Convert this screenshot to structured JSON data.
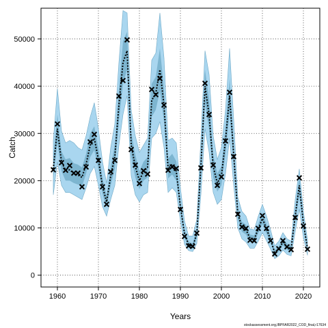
{
  "chart_data": {
    "type": "line",
    "xlabel": "Years",
    "ylabel": "Catch",
    "xlim": [
      1956,
      2024
    ],
    "ylim": [
      -2500,
      56500
    ],
    "xticks": [
      1960,
      1970,
      1980,
      1990,
      2000,
      2010,
      2020
    ],
    "yticks": [
      0,
      10000,
      20000,
      30000,
      40000,
      50000
    ],
    "grid": true,
    "legend": "none",
    "credit": "stockassessment.org,IBPFAR2022_COD_final,r17634",
    "colors": {
      "band_outer": "#a9d6ef",
      "band_inner": "#6fa9c6",
      "line": "#000000",
      "marker": "#000000",
      "grid": "#333333"
    },
    "years": [
      1959,
      1960,
      1961,
      1962,
      1963,
      1964,
      1965,
      1966,
      1967,
      1968,
      1969,
      1970,
      1971,
      1972,
      1973,
      1974,
      1975,
      1976,
      1977,
      1978,
      1979,
      1980,
      1981,
      1982,
      1983,
      1984,
      1985,
      1986,
      1987,
      1988,
      1989,
      1990,
      1991,
      1992,
      1993,
      1994,
      1995,
      1996,
      1997,
      1998,
      1999,
      2000,
      2001,
      2002,
      2003,
      2004,
      2005,
      2006,
      2007,
      2008,
      2009,
      2010,
      2011,
      2012,
      2013,
      2014,
      2015,
      2016,
      2017,
      2018,
      2019,
      2020,
      2021
    ],
    "estimate": [
      22500,
      31000,
      24000,
      22200,
      22300,
      21500,
      21200,
      20700,
      23500,
      27500,
      29000,
      24500,
      18800,
      15500,
      21000,
      25000,
      36000,
      45000,
      47500,
      27500,
      23000,
      20000,
      22000,
      22800,
      37000,
      38500,
      43500,
      36000,
      22500,
      23500,
      22000,
      14500,
      8800,
      6500,
      6000,
      8800,
      23000,
      40000,
      34000,
      23000,
      19500,
      21000,
      28500,
      38000,
      25500,
      13000,
      10200,
      9600,
      7800,
      7600,
      9800,
      12000,
      9800,
      7500,
      4800,
      5500,
      7000,
      6000,
      5600,
      12500,
      19000,
      11000,
      5600
    ],
    "low95": [
      17000,
      24000,
      19000,
      17500,
      17500,
      17000,
      16500,
      16000,
      18500,
      21500,
      23000,
      19000,
      14500,
      12500,
      16000,
      19000,
      27500,
      34000,
      38000,
      21000,
      17000,
      15500,
      17000,
      17500,
      29000,
      30000,
      32500,
      27000,
      17500,
      18500,
      17500,
      11500,
      6500,
      5200,
      5000,
      6700,
      17000,
      31000,
      26000,
      17500,
      15000,
      16000,
      21500,
      29000,
      19000,
      10000,
      7700,
      7000,
      5700,
      5700,
      7200,
      9000,
      7300,
      5500,
      3500,
      4100,
      5300,
      4400,
      4100,
      9200,
      14000,
      8000,
      4200
    ],
    "high95": [
      28500,
      39500,
      30500,
      28000,
      28500,
      28000,
      27000,
      26500,
      29500,
      33500,
      36500,
      31000,
      24000,
      19500,
      27000,
      32000,
      45000,
      56000,
      55500,
      35000,
      29500,
      26000,
      27500,
      29000,
      45500,
      47000,
      55500,
      46000,
      28500,
      29000,
      28000,
      18500,
      11500,
      8300,
      8300,
      11800,
      29000,
      47500,
      42500,
      29500,
      24500,
      27000,
      35000,
      48000,
      33000,
      16500,
      13500,
      12500,
      9800,
      9600,
      12500,
      15000,
      12500,
      9600,
      6200,
      7200,
      9000,
      7700,
      7200,
      16000,
      22500,
      13500,
      7500
    ],
    "low50": [
      20500,
      28000,
      22000,
      20000,
      20000,
      19500,
      19200,
      18800,
      21500,
      25000,
      26500,
      22500,
      17200,
      14300,
      19000,
      22500,
      32500,
      40500,
      43500,
      25000,
      20700,
      18200,
      20000,
      20700,
      33500,
      35000,
      39000,
      32500,
      20500,
      21300,
      20000,
      13300,
      7900,
      6000,
      5600,
      8000,
      20700,
      36500,
      30800,
      20700,
      17700,
      19000,
      25700,
      34500,
      23000,
      11800,
      9200,
      8600,
      7000,
      6900,
      8900,
      10800,
      8800,
      6800,
      4300,
      5000,
      6300,
      5400,
      5000,
      11200,
      17000,
      9900,
      5100
    ],
    "high50": [
      24800,
      34000,
      26200,
      24500,
      24800,
      23700,
      23400,
      22800,
      25700,
      30000,
      31500,
      26800,
      20500,
      16800,
      23000,
      27500,
      39500,
      49500,
      51500,
      30200,
      25500,
      22000,
      24000,
      25000,
      40500,
      42000,
      48000,
      39500,
      24700,
      25700,
      24100,
      15800,
      9700,
      7100,
      6700,
      9800,
      25500,
      43500,
      37200,
      25500,
      21500,
      23000,
      31300,
      41500,
      28000,
      14300,
      11300,
      10700,
      8600,
      8400,
      10800,
      13300,
      10900,
      8300,
      5300,
      6100,
      7700,
      6700,
      6200,
      13800,
      21000,
      12100,
      6200
    ],
    "observed_catch": [
      [
        1959,
        22300
      ],
      [
        1960,
        32000
      ],
      [
        1961,
        23800
      ],
      [
        1962,
        22200
      ],
      [
        1963,
        23200
      ],
      [
        1964,
        21600
      ],
      [
        1965,
        21600
      ],
      [
        1966,
        18700
      ],
      [
        1967,
        22900
      ],
      [
        1968,
        28200
      ],
      [
        1969,
        29800
      ],
      [
        1970,
        24300
      ],
      [
        1971,
        18700
      ],
      [
        1972,
        15000
      ],
      [
        1973,
        21900
      ],
      [
        1974,
        24300
      ],
      [
        1975,
        37900
      ],
      [
        1976,
        41200
      ],
      [
        1977,
        49800
      ],
      [
        1978,
        26600
      ],
      [
        1979,
        23300
      ],
      [
        1980,
        19400
      ],
      [
        1981,
        22100
      ],
      [
        1982,
        21400
      ],
      [
        1983,
        39300
      ],
      [
        1984,
        38200
      ],
      [
        1985,
        41600
      ],
      [
        1986,
        36000
      ],
      [
        1987,
        22200
      ],
      [
        1988,
        22900
      ],
      [
        1989,
        22600
      ],
      [
        1990,
        13900
      ],
      [
        1991,
        8200
      ],
      [
        1992,
        6200
      ],
      [
        1993,
        6100
      ],
      [
        1994,
        8900
      ],
      [
        1995,
        22700
      ],
      [
        1996,
        40600
      ],
      [
        1997,
        34000
      ],
      [
        1998,
        23300
      ],
      [
        1999,
        19000
      ],
      [
        2000,
        20800
      ],
      [
        2001,
        28400
      ],
      [
        2002,
        38700
      ],
      [
        2003,
        25100
      ],
      [
        2004,
        12900
      ],
      [
        2005,
        10200
      ],
      [
        2006,
        9900
      ],
      [
        2007,
        7400
      ],
      [
        2008,
        7300
      ],
      [
        2009,
        9900
      ],
      [
        2010,
        12600
      ],
      [
        2011,
        9900
      ],
      [
        2012,
        7300
      ],
      [
        2013,
        4500
      ],
      [
        2014,
        5600
      ],
      [
        2015,
        7300
      ],
      [
        2016,
        6000
      ],
      [
        2017,
        5400
      ],
      [
        2018,
        12200
      ],
      [
        2019,
        20600
      ],
      [
        2020,
        10400
      ],
      [
        2021,
        5500
      ]
    ]
  }
}
